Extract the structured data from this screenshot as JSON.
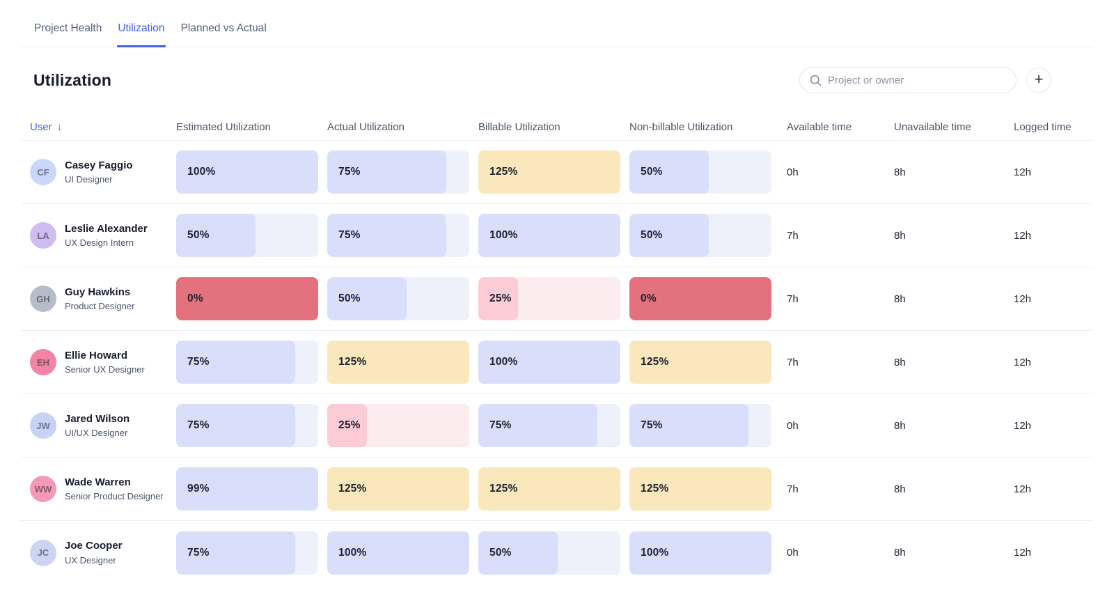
{
  "tabs": [
    {
      "label": "Project Health",
      "active": false
    },
    {
      "label": "Utilization",
      "active": true
    },
    {
      "label": "Planned vs Actual",
      "active": false
    }
  ],
  "page_title": "Utilization",
  "search": {
    "placeholder": "Project or owner"
  },
  "add_button": {
    "label": "+"
  },
  "colors": {
    "accent_blue": "#4161e1",
    "bar_fill": "#d9dffb",
    "bar_track": "#eef1fa",
    "bar_over_yellow": "#fae8bc",
    "bar_danger_red": "#e4717e",
    "bar_warn_fill": "#fbccd6",
    "bar_warn_track": "#fdecef",
    "header_text": "#4a5568",
    "row_border": "#eceff5"
  },
  "table": {
    "columns": [
      "User",
      "Estimated Utilization",
      "Actual Utilization",
      "Billable Utilization",
      "Non-billable Utilization",
      "Available time",
      "Unavailable time",
      "Logged time"
    ],
    "sort_icon": "↓",
    "rows": [
      {
        "name": "Casey Faggio",
        "role": "UI Designer",
        "initials": "CF",
        "avatar_color": "#c9d7f8",
        "bars": [
          {
            "label": "100%",
            "value": 100
          },
          {
            "label": "75%",
            "value": 75
          },
          {
            "label": "125%",
            "value": 125
          },
          {
            "label": "50%",
            "value": 50
          }
        ],
        "available": "0h",
        "unavailable": "8h",
        "logged": "12h"
      },
      {
        "name": "Leslie Alexander",
        "role": "UX Design Intern",
        "initials": "LA",
        "avatar_color": "#cfbcf0",
        "bars": [
          {
            "label": "50%",
            "value": 50
          },
          {
            "label": "75%",
            "value": 75
          },
          {
            "label": "100%",
            "value": 100
          },
          {
            "label": "50%",
            "value": 50
          }
        ],
        "available": "7h",
        "unavailable": "8h",
        "logged": "12h"
      },
      {
        "name": "Guy Hawkins",
        "role": "Product Designer",
        "initials": "GH",
        "avatar_color": "#b6bdc9",
        "bars": [
          {
            "label": "0%",
            "value": 0
          },
          {
            "label": "50%",
            "value": 50
          },
          {
            "label": "25%",
            "value": 25
          },
          {
            "label": "0%",
            "value": 0
          }
        ],
        "available": "7h",
        "unavailable": "8h",
        "logged": "12h"
      },
      {
        "name": "Ellie Howard",
        "role": "Senior UX Designer",
        "initials": "EH",
        "avatar_color": "#f285a5",
        "bars": [
          {
            "label": "75%",
            "value": 75
          },
          {
            "label": "125%",
            "value": 125
          },
          {
            "label": "100%",
            "value": 100
          },
          {
            "label": "125%",
            "value": 125
          }
        ],
        "available": "7h",
        "unavailable": "8h",
        "logged": "12h"
      },
      {
        "name": "Jared Wilson",
        "role": "UI/UX Designer",
        "initials": "JW",
        "avatar_color": "#c7d2f5",
        "bars": [
          {
            "label": "75%",
            "value": 75
          },
          {
            "label": "25%",
            "value": 25
          },
          {
            "label": "75%",
            "value": 75
          },
          {
            "label": "75%",
            "value": 75
          }
        ],
        "available": "0h",
        "unavailable": "8h",
        "logged": "12h"
      },
      {
        "name": "Wade Warren",
        "role": "Senior Product Designer",
        "initials": "WW",
        "avatar_color": "#f59ab4",
        "bars": [
          {
            "label": "99%",
            "value": 99
          },
          {
            "label": "125%",
            "value": 125
          },
          {
            "label": "125%",
            "value": 125
          },
          {
            "label": "125%",
            "value": 125
          }
        ],
        "available": "7h",
        "unavailable": "8h",
        "logged": "12h"
      },
      {
        "name": "Joe Cooper",
        "role": "UX Designer",
        "initials": "JC",
        "avatar_color": "#ccd4f2",
        "bars": [
          {
            "label": "75%",
            "value": 75
          },
          {
            "label": "100%",
            "value": 100
          },
          {
            "label": "50%",
            "value": 50
          },
          {
            "label": "100%",
            "value": 100
          }
        ],
        "available": "0h",
        "unavailable": "8h",
        "logged": "12h"
      }
    ]
  }
}
